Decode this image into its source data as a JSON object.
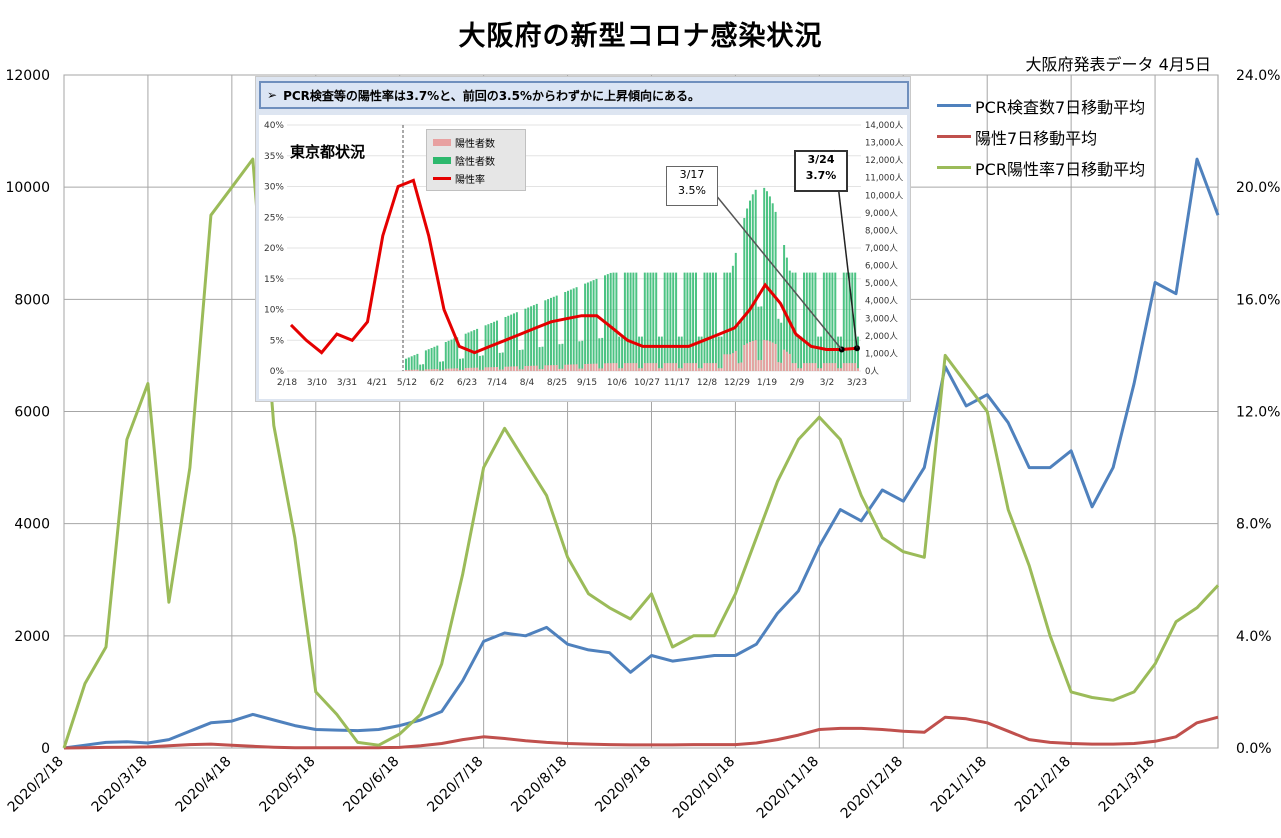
{
  "title": "大阪府の新型コロナ感染状況",
  "source_note": "大阪府発表データ 4月5日",
  "chart_data": {
    "type": "line",
    "x": [
      "2020/2/18",
      "2020/2/25",
      "2020/3/3",
      "2020/3/10",
      "2020/3/18",
      "2020/3/25",
      "2020/4/1",
      "2020/4/8",
      "2020/4/18",
      "2020/4/25",
      "2020/5/2",
      "2020/5/9",
      "2020/5/18",
      "2020/5/25",
      "2020/6/1",
      "2020/6/8",
      "2020/6/18",
      "2020/6/25",
      "2020/7/2",
      "2020/7/9",
      "2020/7/18",
      "2020/7/25",
      "2020/8/1",
      "2020/8/8",
      "2020/8/18",
      "2020/8/25",
      "2020/9/1",
      "2020/9/8",
      "2020/9/18",
      "2020/9/25",
      "2020/10/2",
      "2020/10/9",
      "2020/10/18",
      "2020/10/25",
      "2020/11/1",
      "2020/11/8",
      "2020/11/18",
      "2020/11/25",
      "2020/12/2",
      "2020/12/9",
      "2020/12/18",
      "2020/12/25",
      "2021/1/1",
      "2021/1/8",
      "2021/1/18",
      "2021/1/25",
      "2021/2/1",
      "2021/2/8",
      "2021/2/18",
      "2021/2/25",
      "2021/3/4",
      "2021/3/11",
      "2021/3/18",
      "2021/3/25",
      "2021/4/1",
      "2021/4/4"
    ],
    "x_ticks": [
      "2020/2/18",
      "2020/3/18",
      "2020/4/18",
      "2020/5/18",
      "2020/6/18",
      "2020/7/18",
      "2020/8/18",
      "2020/9/18",
      "2020/10/18",
      "2020/11/18",
      "2020/12/18",
      "2021/1/18",
      "2021/2/18",
      "2021/3/18"
    ],
    "y_left": {
      "min": 0,
      "max": 12000,
      "ticks": [
        "0",
        "2000",
        "4000",
        "6000",
        "8000",
        "10000",
        "12000"
      ]
    },
    "y_right": {
      "min": 0,
      "max": 0.24,
      "ticks": [
        "0.0%",
        "4.0%",
        "8.0%",
        "12.0%",
        "16.0%",
        "20.0%",
        "24.0%"
      ]
    },
    "grid": true,
    "legend_position": "top-right",
    "series": [
      {
        "name": "PCR検査数7日移動平均",
        "axis": "left",
        "color": "#4f81bd",
        "values": [
          0,
          50,
          100,
          110,
          90,
          150,
          300,
          450,
          480,
          600,
          500,
          400,
          330,
          320,
          310,
          330,
          400,
          500,
          650,
          1200,
          1900,
          2050,
          2000,
          2150,
          1850,
          1750,
          1700,
          1350,
          1650,
          1550,
          1600,
          1650,
          1650,
          1850,
          2400,
          2800,
          3600,
          4250,
          4050,
          4600,
          4400,
          5000,
          6800,
          6100,
          6300,
          5800,
          5000,
          5000,
          5300,
          4300,
          5000,
          6500,
          8300,
          8100,
          10500,
          9500
        ]
      },
      {
        "name": "陽性7日移動平均",
        "axis": "left",
        "color": "#c0504d",
        "values": [
          0,
          5,
          10,
          15,
          20,
          40,
          60,
          70,
          50,
          30,
          15,
          5,
          3,
          3,
          3,
          5,
          10,
          40,
          80,
          150,
          200,
          170,
          130,
          100,
          80,
          70,
          60,
          55,
          55,
          55,
          60,
          60,
          60,
          90,
          150,
          230,
          330,
          350,
          350,
          330,
          300,
          280,
          550,
          520,
          450,
          300,
          150,
          100,
          80,
          70,
          70,
          80,
          120,
          200,
          450,
          550
        ]
      },
      {
        "name": "PCR陽性率7日移動平均",
        "axis": "right",
        "color": "#9bbb59",
        "values": [
          0,
          0.023,
          0.036,
          0.11,
          0.13,
          0.052,
          0.1,
          0.19,
          0.2,
          0.21,
          0.115,
          0.075,
          0.02,
          0.012,
          0.002,
          0.001,
          0.005,
          0.012,
          0.03,
          0.062,
          0.1,
          0.114,
          0.102,
          0.09,
          0.068,
          0.055,
          0.05,
          0.046,
          0.055,
          0.036,
          0.04,
          0.04,
          0.055,
          0.075,
          0.095,
          0.11,
          0.118,
          0.11,
          0.09,
          0.075,
          0.07,
          0.068,
          0.14,
          0.13,
          0.12,
          0.085,
          0.065,
          0.04,
          0.02,
          0.018,
          0.017,
          0.02,
          0.03,
          0.045,
          0.05,
          0.058
        ]
      }
    ]
  },
  "inset": {
    "header": "PCR検査等の陽性率は3.7%と、前回の3.5%からわずかに上昇傾向にある。",
    "header_icon": "arrow-marker",
    "overlay_title": "東京都状況",
    "legend": [
      "陽性者数",
      "陰性者数",
      "陽性率"
    ],
    "callout_a": {
      "date": "3/17",
      "value": "3.5%"
    },
    "callout_b": {
      "date": "3/24",
      "value": "3.7%"
    },
    "chart_data": {
      "type": "bar",
      "x_ticks": [
        "2/18",
        "3/10",
        "3/31",
        "4/21",
        "5/12",
        "6/2",
        "6/23",
        "7/14",
        "8/4",
        "8/25",
        "9/15",
        "10/6",
        "10/27",
        "11/17",
        "12/8",
        "12/29",
        "1/19",
        "2/9",
        "3/2",
        "3/23"
      ],
      "y_left_ticks": [
        "0%",
        "5%",
        "10%",
        "15%",
        "20%",
        "25%",
        "30%",
        "35%",
        "40%"
      ],
      "y_right_ticks": [
        "0人",
        "1,000人",
        "2,000人",
        "3,000人",
        "4,000人",
        "5,000人",
        "6,000人",
        "7,000人",
        "8,000人",
        "9,000人",
        "10,000人",
        "11,000人",
        "12,000人",
        "13,000人",
        "14,000人"
      ],
      "positive_rate": [
        0.075,
        0.05,
        0.03,
        0.06,
        0.05,
        0.08,
        0.22,
        0.3,
        0.31,
        0.22,
        0.1,
        0.04,
        0.03,
        0.04,
        0.05,
        0.06,
        0.07,
        0.08,
        0.085,
        0.09,
        0.09,
        0.07,
        0.05,
        0.04,
        0.04,
        0.04,
        0.04,
        0.05,
        0.06,
        0.07,
        0.1,
        0.14,
        0.11,
        0.06,
        0.04,
        0.035,
        0.035,
        0.037
      ],
      "colors": {
        "positive": "#e8a1a1",
        "negative": "#2db86d",
        "rate": "#e50000"
      }
    }
  }
}
